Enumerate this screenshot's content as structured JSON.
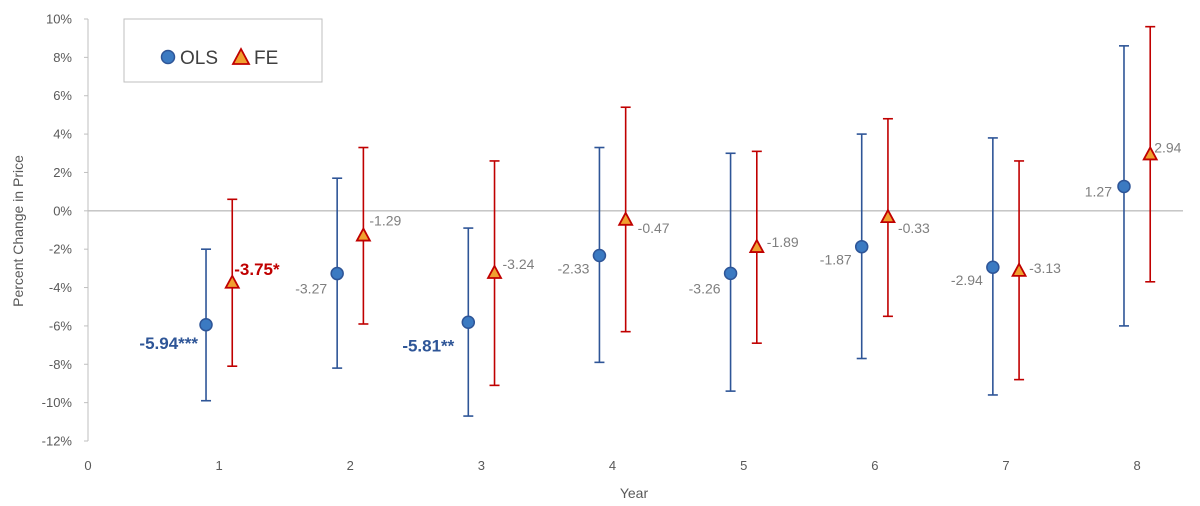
{
  "chart_data": {
    "type": "scatter",
    "xlabel": "Year",
    "ylabel": "Percent Change in Price",
    "xlim": [
      0,
      8.35
    ],
    "ylim": [
      -12,
      10
    ],
    "x_ticks": [
      "0",
      "1",
      "2",
      "3",
      "4",
      "5",
      "6",
      "7",
      "8"
    ],
    "y_ticks": [
      "10%",
      "8%",
      "6%",
      "4%",
      "2%",
      "0%",
      "-2%",
      "-4%",
      "-6%",
      "-8%",
      "-10%",
      "-12%"
    ],
    "legend": {
      "position": "top-left",
      "entries": [
        "OLS",
        "FE"
      ]
    },
    "series": [
      {
        "name": "OLS",
        "marker": "circle",
        "color": "#2e5597",
        "point_color": "#3b7ac2",
        "x": [
          0.9,
          1.9,
          2.9,
          3.9,
          4.9,
          5.9,
          6.9,
          7.9
        ],
        "y": [
          -5.94,
          -3.27,
          -5.81,
          -2.33,
          -3.26,
          -1.87,
          -2.94,
          1.27
        ],
        "ci_low": [
          -9.9,
          -8.2,
          -10.7,
          -7.9,
          -9.4,
          -7.7,
          -9.6,
          -6.0
        ],
        "ci_high": [
          -2.0,
          1.7,
          -0.9,
          3.3,
          3.0,
          4.0,
          3.8,
          8.6
        ],
        "labels": [
          "-5.94***",
          "-3.27",
          "-5.81**",
          "-2.33",
          "-3.26",
          "-1.87",
          "-2.94",
          "1.27"
        ],
        "label_bold": [
          true,
          false,
          true,
          false,
          false,
          false,
          false,
          false
        ]
      },
      {
        "name": "FE",
        "marker": "triangle",
        "color": "#c00000",
        "point_color": "#c00000",
        "x": [
          1.1,
          2.1,
          3.1,
          4.1,
          5.1,
          6.1,
          7.1,
          8.1
        ],
        "y": [
          -3.75,
          -1.29,
          -3.24,
          -0.47,
          -1.89,
          -0.33,
          -3.13,
          2.94
        ],
        "ci_low": [
          -8.1,
          -5.9,
          -9.1,
          -6.3,
          -6.9,
          -5.5,
          -8.8,
          -3.7
        ],
        "ci_high": [
          0.6,
          3.3,
          2.6,
          5.4,
          3.1,
          4.8,
          2.6,
          9.6
        ],
        "labels": [
          "-3.75*",
          "-1.29",
          "-3.24",
          "-0.47",
          "-1.89",
          "-0.33",
          "-3.13",
          "2.94"
        ],
        "label_bold": [
          true,
          false,
          false,
          false,
          false,
          false,
          false,
          false
        ]
      }
    ]
  }
}
